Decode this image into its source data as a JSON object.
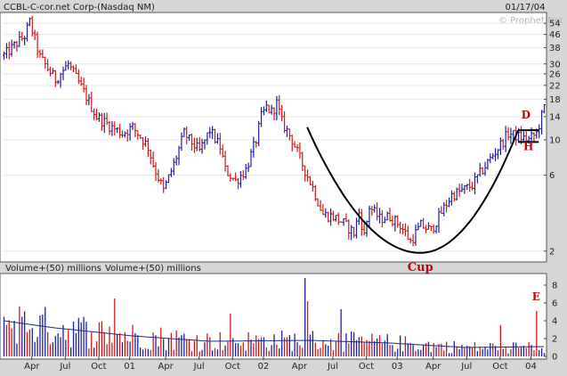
{
  "header": {
    "title": "CCBL-C-cor.net Corp-(Nasdaq NM)",
    "date": "01/17/04",
    "watermark": "© Prophet.Net"
  },
  "volume_panel": {
    "title_a": "Volume+(50) millions",
    "title_b": "Volume+(50) millions"
  },
  "colors": {
    "up": "#1f1f9e",
    "down": "#d01818",
    "ma_line": "#1a2a8a",
    "cup_line": "#000000",
    "annotation": "#c40000",
    "panel_bg": "#ffffff",
    "frame_bg": "#d6d6d6"
  },
  "annotations": [
    {
      "id": "cup",
      "text": "Cup"
    },
    {
      "id": "handle",
      "text": "H"
    },
    {
      "id": "d",
      "text": "D"
    },
    {
      "id": "e",
      "text": "E"
    }
  ],
  "chart_data": [
    {
      "type": "ohlc",
      "title": "CCBL-C-cor.net Corp-(Nasdaq NM)",
      "y_scale": "log",
      "y_ticks": [
        54,
        46,
        38,
        30,
        26,
        22,
        18,
        14,
        10,
        6,
        2
      ],
      "ylim": [
        1.8,
        60
      ],
      "x_ticks": [
        "Apr",
        "Jul",
        "Oct",
        "01",
        "Apr",
        "Jul",
        "Oct",
        "02",
        "Apr",
        "Jul",
        "Oct",
        "03",
        "Apr",
        "Jul",
        "Oct",
        "04"
      ],
      "x_tick_weeks": [
        11,
        24,
        37,
        49,
        63,
        76,
        89,
        101,
        115,
        128,
        141,
        153,
        167,
        180,
        193,
        205
      ],
      "week_count": 210,
      "path_weeks": [
        0,
        8,
        10,
        14,
        20,
        25,
        31,
        36,
        42,
        46,
        50,
        54,
        56,
        58,
        62,
        66,
        70,
        72,
        76,
        80,
        84,
        86,
        90,
        94,
        98,
        100,
        102,
        104,
        106,
        108,
        112,
        116,
        120,
        124,
        128,
        132,
        136,
        138,
        140,
        142,
        146,
        150,
        154,
        156,
        158,
        160,
        162,
        166,
        170,
        174,
        178,
        182,
        186,
        190,
        196,
        200,
        204,
        207,
        210
      ],
      "path_close": [
        34,
        45,
        55,
        33,
        24,
        30,
        20,
        14,
        12,
        11,
        12,
        10,
        9,
        7,
        4.8,
        7,
        11,
        10,
        8.5,
        11.5,
        9,
        6.5,
        5.5,
        6.5,
        10,
        14,
        16,
        15,
        17,
        13,
        10,
        7,
        5,
        3.4,
        3.3,
        3,
        2.6,
        3.5,
        2.5,
        3.8,
        3.2,
        3.3,
        2.9,
        2.6,
        2.3,
        2.6,
        2.9,
        2.7,
        3.5,
        4.5,
        4.8,
        5.2,
        6.5,
        8,
        11,
        10.5,
        10,
        11,
        16
      ],
      "volume": {
        "unit": "millions",
        "y_ticks": [
          8,
          6,
          4,
          2,
          0
        ],
        "ylim": [
          0,
          9
        ],
        "base_level": 1.4,
        "spikes": [
          {
            "week": 117,
            "value": 8.8
          },
          {
            "week": 118,
            "value": 6.2
          },
          {
            "week": 131,
            "value": 5.3
          },
          {
            "week": 43,
            "value": 6.5
          },
          {
            "week": 207,
            "value": 5.1
          },
          {
            "week": 193,
            "value": 3.5
          },
          {
            "week": 88,
            "value": 4.8
          }
        ],
        "ma_line": [
          [
            0,
            4.0
          ],
          [
            20,
            3.2
          ],
          [
            50,
            2.3
          ],
          [
            80,
            1.7
          ],
          [
            120,
            1.8
          ],
          [
            150,
            1.5
          ],
          [
            180,
            1.0
          ],
          [
            210,
            1.1
          ]
        ]
      }
    }
  ]
}
